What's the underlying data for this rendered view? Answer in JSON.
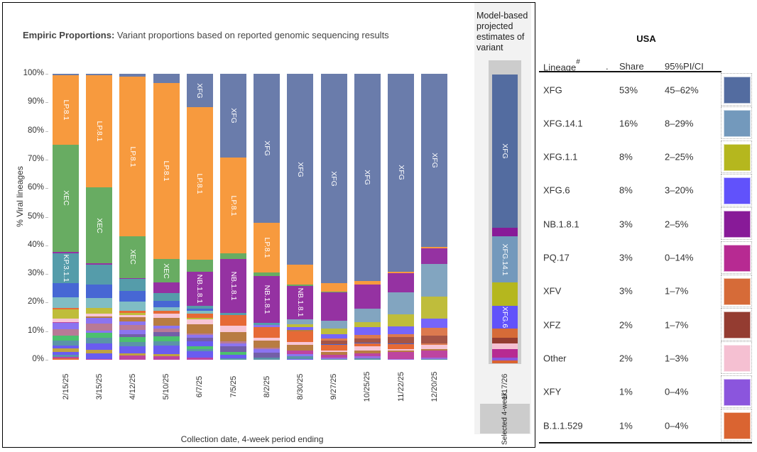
{
  "title": {
    "bold": "Empiric Proportions:",
    "rest": " Variant proportions based on reported genomic sequencing results"
  },
  "projection": {
    "title": "Model-based projected estimates of variant",
    "date": "1/17/26",
    "selected_label": "Selected 4-week"
  },
  "table": {
    "region": "USA",
    "headers": {
      "lineage": "Lineage",
      "lineage_sup": "#",
      "dot": ".",
      "share": "Share",
      "ci": "95%PI/CI"
    },
    "rows": [
      {
        "lineage": "XFG",
        "share": "53%",
        "ci": "45–62%",
        "color": "#536ca0"
      },
      {
        "lineage": "XFG.14.1",
        "share": "16%",
        "ci": "8–29%",
        "color": "#7399bc"
      },
      {
        "lineage": "XFG.1.1",
        "share": "8%",
        "ci": "2–25%",
        "color": "#b5b71e"
      },
      {
        "lineage": "XFG.6",
        "share": "8%",
        "ci": "3–20%",
        "color": "#6152fb"
      },
      {
        "lineage": "NB.1.8.1",
        "share": "3%",
        "ci": "2–5%",
        "color": "#881a98"
      },
      {
        "lineage": "PQ.17",
        "share": "3%",
        "ci": "0–14%",
        "color": "#b72a92"
      },
      {
        "lineage": "XFV",
        "share": "3%",
        "ci": "1–7%",
        "color": "#d66b38"
      },
      {
        "lineage": "XFZ",
        "share": "2%",
        "ci": "1–7%",
        "color": "#943c31"
      },
      {
        "lineage": "Other",
        "share": "2%",
        "ci": "1–3%",
        "color": "#f5c0d2"
      },
      {
        "lineage": "XFY",
        "share": "1%",
        "ci": "0–4%",
        "color": "#8b55dd"
      },
      {
        "lineage": "B.1.1.529",
        "share": "1%",
        "ci": "0–4%",
        "color": "#da6431"
      }
    ]
  },
  "chart_data": {
    "type": "bar",
    "stacked": true,
    "xlabel": "Collection date, 4-week period ending",
    "ylabel": "% Viral lineages",
    "ylim": [
      0,
      100
    ],
    "yticks": [
      "0%",
      "10%",
      "20%",
      "30%",
      "40%",
      "50%",
      "60%",
      "70%",
      "80%",
      "90%",
      "100%"
    ],
    "palette": {
      "XFG": "#6a7cab",
      "LP": "#f79a3e",
      "XEC": "#68ac62",
      "NB": "#9532a2",
      "KP": "#559caa",
      "blue": "#4767d4",
      "ltteal": "#80bdc4",
      "olive": "#bfbd3b",
      "pink": "#f7c6d6",
      "violet": "#8b74f0",
      "mauve": "#b87a96",
      "green2": "#4cc06e",
      "steel": "#5b94a8",
      "gold": "#c0a240",
      "brown": "#b87c42",
      "orred": "#e66a36",
      "x141": "#82a5c0",
      "x6": "#7565fb",
      "xfv": "#dc7a4f",
      "xfz": "#a45446",
      "pq": "#bd45a0",
      "xfy": "#9b6ce0",
      "slate": "#735fa8",
      "bviolet": "#6a5cf0"
    },
    "categories": [
      "2/15/25",
      "3/15/25",
      "4/12/25",
      "5/10/25",
      "6/7/25",
      "7/5/25",
      "8/2/25",
      "8/30/25",
      "9/27/25",
      "10/25/25",
      "11/22/25",
      "12/20/25"
    ],
    "bars": [
      [
        [
          0.5,
          "orred"
        ],
        [
          0.5,
          "pq"
        ],
        [
          0.8,
          "steel"
        ],
        [
          1,
          "bviolet"
        ],
        [
          1.3,
          "gold"
        ],
        [
          1,
          "bviolet"
        ],
        [
          1.7,
          "steel"
        ],
        [
          1.7,
          "green2"
        ],
        [
          2.2,
          "mauve"
        ],
        [
          2.2,
          "violet"
        ],
        [
          0.4,
          "pq"
        ],
        [
          1.2,
          "pink"
        ],
        [
          3.3,
          "olive"
        ],
        [
          0.4,
          "orred"
        ],
        [
          3.7,
          "ltteal"
        ],
        [
          5,
          "blue"
        ],
        [
          10.4,
          "KP",
          "KP.3.1.1"
        ],
        [
          0.5,
          "NB"
        ],
        [
          37.4,
          "XEC",
          "XEC"
        ],
        [
          24.5,
          "LP",
          "LP.8.1"
        ],
        [
          0.3,
          "XFG"
        ]
      ],
      [
        [
          0.4,
          "pq"
        ],
        [
          2,
          "bviolet"
        ],
        [
          1.2,
          "gold"
        ],
        [
          2.2,
          "bviolet"
        ],
        [
          2,
          "steel"
        ],
        [
          1.7,
          "green2"
        ],
        [
          0.7,
          "violet"
        ],
        [
          2.5,
          "mauve"
        ],
        [
          2,
          "violet"
        ],
        [
          0.6,
          "brown"
        ],
        [
          0.8,
          "pink"
        ],
        [
          2,
          "olive"
        ],
        [
          3.5,
          "ltteal"
        ],
        [
          4.7,
          "blue"
        ],
        [
          7,
          "KP"
        ],
        [
          0.4,
          "NB"
        ],
        [
          26.7,
          "XEC",
          "XEC"
        ],
        [
          39.2,
          "LP",
          "LP.8.1"
        ],
        [
          0.4,
          "XFG"
        ]
      ],
      [
        [
          1.5,
          "pq"
        ],
        [
          0.7,
          "gold"
        ],
        [
          2.5,
          "bviolet"
        ],
        [
          1.7,
          "steel"
        ],
        [
          1.5,
          "green2"
        ],
        [
          1,
          "slate"
        ],
        [
          1.7,
          "violet"
        ],
        [
          1.7,
          "mauve"
        ],
        [
          1.2,
          "violet"
        ],
        [
          1.5,
          "brown"
        ],
        [
          0.8,
          "pink"
        ],
        [
          0.7,
          "olive"
        ],
        [
          0.8,
          "orred"
        ],
        [
          3.2,
          "ltteal"
        ],
        [
          3.7,
          "blue"
        ],
        [
          4.2,
          "KP"
        ],
        [
          0.3,
          "NB"
        ],
        [
          14.5,
          "XEC",
          "XEC"
        ],
        [
          55.8,
          "LP",
          "LP.8.1"
        ],
        [
          1,
          "XFG"
        ]
      ],
      [
        [
          1.4,
          "pq"
        ],
        [
          0.7,
          "gold"
        ],
        [
          3,
          "bviolet"
        ],
        [
          1.5,
          "steel"
        ],
        [
          1.7,
          "green2"
        ],
        [
          1.5,
          "slate"
        ],
        [
          1.2,
          "mauve"
        ],
        [
          1,
          "violet"
        ],
        [
          2.7,
          "brown"
        ],
        [
          1.5,
          "pink"
        ],
        [
          1,
          "orred"
        ],
        [
          1.2,
          "ltteal"
        ],
        [
          2.2,
          "blue"
        ],
        [
          2.7,
          "KP"
        ],
        [
          3.7,
          "NB"
        ],
        [
          8.2,
          "XEC",
          "XEC"
        ],
        [
          61.6,
          "LP",
          "LP.8.1"
        ],
        [
          3.2,
          "XFG"
        ]
      ],
      [
        [
          0.8,
          "pq"
        ],
        [
          2.2,
          "bviolet"
        ],
        [
          0.7,
          "steel"
        ],
        [
          1.2,
          "green2"
        ],
        [
          1.7,
          "bviolet"
        ],
        [
          1.2,
          "slate"
        ],
        [
          1,
          "violet"
        ],
        [
          0.5,
          "mauve"
        ],
        [
          3.2,
          "brown"
        ],
        [
          1.7,
          "pink"
        ],
        [
          0.5,
          "olive"
        ],
        [
          1.5,
          "orred"
        ],
        [
          1,
          "ltteal"
        ],
        [
          0.7,
          "blue"
        ],
        [
          1,
          "KP"
        ],
        [
          11.9,
          "NB",
          "NB.1.8.1"
        ],
        [
          4.2,
          "XEC"
        ],
        [
          53.3,
          "LP",
          "LP.8.1"
        ],
        [
          11.7,
          "XFG",
          "XFG"
        ]
      ],
      [
        [
          0.5,
          "steel"
        ],
        [
          1.2,
          "bviolet"
        ],
        [
          1.2,
          "green2"
        ],
        [
          2,
          "slate"
        ],
        [
          1,
          "violet"
        ],
        [
          0.7,
          "mauve"
        ],
        [
          3.2,
          "brown"
        ],
        [
          2.2,
          "pink"
        ],
        [
          3.7,
          "orred"
        ],
        [
          0.7,
          "KP"
        ],
        [
          18.8,
          "NB",
          "NB.1.8.1"
        ],
        [
          2,
          "XEC"
        ],
        [
          33.5,
          "LP",
          "LP.8.1"
        ],
        [
          29.3,
          "XFG",
          "XFG"
        ]
      ],
      [
        [
          0.9,
          "steel"
        ],
        [
          1.7,
          "slate"
        ],
        [
          1.2,
          "violet"
        ],
        [
          0.5,
          "mauve"
        ],
        [
          2.5,
          "brown"
        ],
        [
          1,
          "pink"
        ],
        [
          3.7,
          "orred"
        ],
        [
          0.7,
          "violet"
        ],
        [
          0.7,
          "KP"
        ],
        [
          16.4,
          "NB",
          "NB.1.8.1"
        ],
        [
          1.2,
          "XEC"
        ],
        [
          17.4,
          "LP",
          "LP.8.1"
        ],
        [
          52.1,
          "XFG",
          "XFG"
        ]
      ],
      [
        [
          0.3,
          "bviolet"
        ],
        [
          1,
          "steel"
        ],
        [
          0.7,
          "violet"
        ],
        [
          1.2,
          "pq"
        ],
        [
          2.2,
          "brown"
        ],
        [
          1,
          "pink"
        ],
        [
          3.7,
          "orred"
        ],
        [
          0.5,
          "brown"
        ],
        [
          1,
          "x6"
        ],
        [
          1,
          "olive"
        ],
        [
          1.5,
          "x141"
        ],
        [
          11.9,
          "NB",
          "NB.1.8.1"
        ],
        [
          0.3,
          "XEC"
        ],
        [
          7,
          "LP"
        ],
        [
          66.7,
          "XFG",
          "XFG"
        ]
      ],
      [
        [
          0.2,
          "steel"
        ],
        [
          0.5,
          "xfy"
        ],
        [
          1,
          "pq"
        ],
        [
          1.2,
          "brown"
        ],
        [
          0.3,
          "pink"
        ],
        [
          2,
          "orred"
        ],
        [
          0.3,
          "blue"
        ],
        [
          1.2,
          "xfz"
        ],
        [
          0.7,
          "xfv"
        ],
        [
          1.5,
          "x6"
        ],
        [
          2.2,
          "olive"
        ],
        [
          2.7,
          "x141"
        ],
        [
          9.8,
          "NB"
        ],
        [
          0.2,
          "XEC"
        ],
        [
          3,
          "LP"
        ],
        [
          73.2,
          "XFG",
          "XFG"
        ]
      ],
      [
        [
          0.5,
          "steel"
        ],
        [
          0.7,
          "xfy"
        ],
        [
          1.2,
          "pq"
        ],
        [
          1,
          "brown"
        ],
        [
          1.5,
          "pink"
        ],
        [
          1,
          "orred"
        ],
        [
          0.2,
          "blue"
        ],
        [
          1.5,
          "xfz"
        ],
        [
          1.2,
          "xfv"
        ],
        [
          2.7,
          "x6"
        ],
        [
          1.7,
          "olive"
        ],
        [
          4.7,
          "x141"
        ],
        [
          8.4,
          "NB"
        ],
        [
          1.2,
          "LP"
        ],
        [
          72.5,
          "XFG",
          "XFG"
        ]
      ],
      [
        [
          0.2,
          "xfy"
        ],
        [
          2.5,
          "pq"
        ],
        [
          0.5,
          "brown"
        ],
        [
          0.7,
          "pink"
        ],
        [
          1.7,
          "orred"
        ],
        [
          0.3,
          "blue"
        ],
        [
          2,
          "xfz"
        ],
        [
          1.2,
          "xfv"
        ],
        [
          2.7,
          "x6"
        ],
        [
          4.2,
          "olive"
        ],
        [
          7.7,
          "x141"
        ],
        [
          6.7,
          "NB"
        ],
        [
          0.5,
          "LP"
        ],
        [
          69.1,
          "XFG",
          "XFG"
        ]
      ],
      [
        [
          0.2,
          "steel"
        ],
        [
          0.7,
          "xfy"
        ],
        [
          2.5,
          "pq"
        ],
        [
          0.3,
          "brown"
        ],
        [
          1.7,
          "pink"
        ],
        [
          0.3,
          "xfv"
        ],
        [
          2.7,
          "xfz"
        ],
        [
          2.8,
          "xfv"
        ],
        [
          3.2,
          "x6"
        ],
        [
          7.7,
          "olive"
        ],
        [
          11.4,
          "x141"
        ],
        [
          5.5,
          "NB"
        ],
        [
          0.5,
          "LP"
        ],
        [
          60.5,
          "XFG",
          "XFG"
        ]
      ]
    ],
    "projection_bar": {
      "category": "1/17/26",
      "segments": [
        [
          "B.1.1.529",
          1
        ],
        [
          "XFY",
          1
        ],
        [
          "PQ.17",
          3
        ],
        [
          "Other",
          2
        ],
        [
          "XFZ",
          2
        ],
        [
          "XFV",
          3
        ],
        [
          "XFG.6",
          8,
          "XFG.6"
        ],
        [
          "XFG.1.1",
          8
        ],
        [
          "XFG.14.1",
          16,
          "XFG.14.1"
        ],
        [
          "NB.1.8.1",
          3
        ],
        [
          "XFG",
          53,
          "XFG"
        ]
      ]
    }
  }
}
